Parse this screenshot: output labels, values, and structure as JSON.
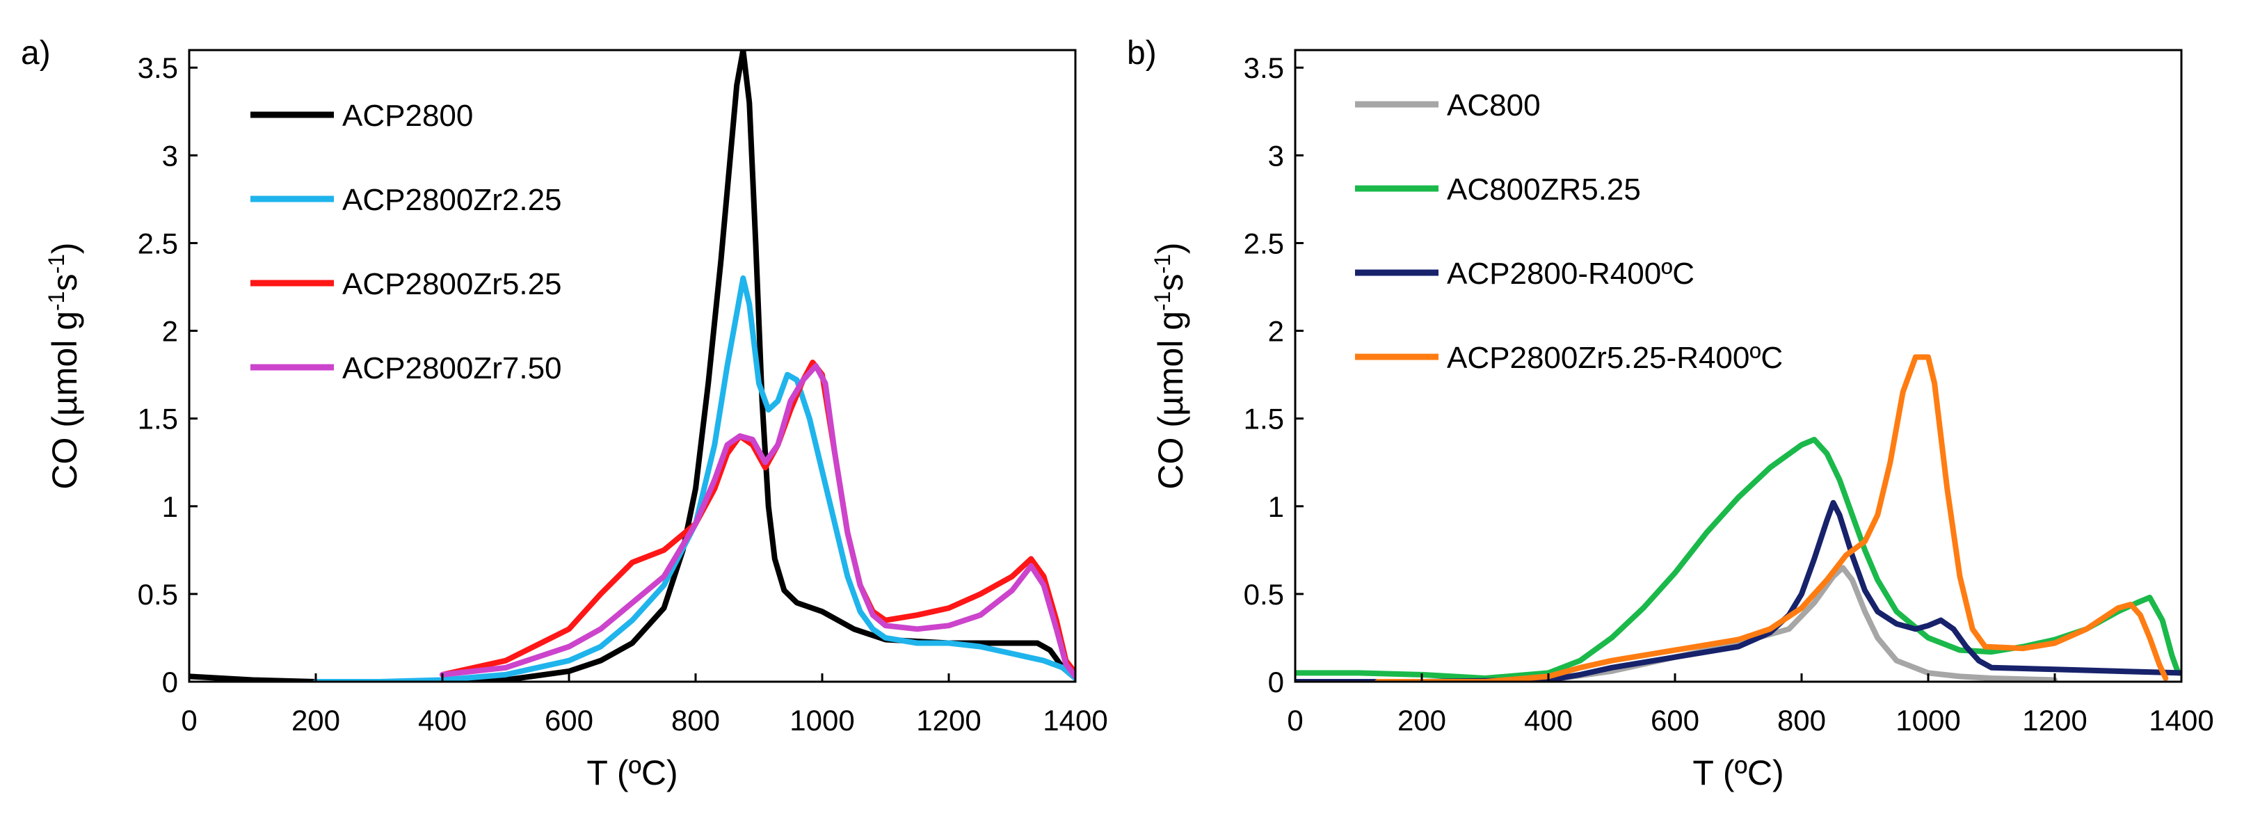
{
  "chart_data": [
    {
      "panel_label": "a)",
      "type": "line",
      "xlabel": "T (ºC)",
      "ylabel": {
        "main": "CO (µmol g",
        "sup1": "-1",
        "mid": "s",
        "sup2": "-1",
        "end": ")"
      },
      "xlim": [
        0,
        1400
      ],
      "ylim": [
        0,
        3.6
      ],
      "xticks": [
        0,
        200,
        400,
        600,
        800,
        1000,
        1200,
        1400
      ],
      "yticks": [
        0,
        0.5,
        1,
        1.5,
        2,
        2.5,
        3,
        3.5
      ],
      "ytick_labels": [
        "0",
        "0.5",
        "1",
        "1.5",
        "2",
        "2.5",
        "3",
        "3.5"
      ],
      "grid": false,
      "legend_position": "top-left",
      "series": [
        {
          "name": "ACP2800",
          "color": "#000000",
          "points": [
            [
              0,
              0.03
            ],
            [
              100,
              0.01
            ],
            [
              200,
              0.0
            ],
            [
              300,
              0.0
            ],
            [
              400,
              0.0
            ],
            [
              500,
              0.01
            ],
            [
              600,
              0.06
            ],
            [
              650,
              0.12
            ],
            [
              700,
              0.22
            ],
            [
              750,
              0.42
            ],
            [
              780,
              0.75
            ],
            [
              800,
              1.1
            ],
            [
              820,
              1.7
            ],
            [
              840,
              2.4
            ],
            [
              855,
              3.0
            ],
            [
              865,
              3.4
            ],
            [
              875,
              3.6
            ],
            [
              885,
              3.3
            ],
            [
              895,
              2.5
            ],
            [
              905,
              1.6
            ],
            [
              915,
              1.0
            ],
            [
              925,
              0.7
            ],
            [
              940,
              0.52
            ],
            [
              960,
              0.45
            ],
            [
              1000,
              0.4
            ],
            [
              1050,
              0.3
            ],
            [
              1100,
              0.24
            ],
            [
              1200,
              0.22
            ],
            [
              1300,
              0.22
            ],
            [
              1340,
              0.22
            ],
            [
              1360,
              0.18
            ],
            [
              1380,
              0.08
            ],
            [
              1400,
              0.02
            ]
          ]
        },
        {
          "name": "ACP2800Zr2.25",
          "color": "#1fb4ec",
          "points": [
            [
              200,
              0.0
            ],
            [
              300,
              0.0
            ],
            [
              400,
              0.01
            ],
            [
              500,
              0.04
            ],
            [
              600,
              0.12
            ],
            [
              650,
              0.2
            ],
            [
              700,
              0.35
            ],
            [
              750,
              0.55
            ],
            [
              800,
              0.9
            ],
            [
              830,
              1.35
            ],
            [
              850,
              1.8
            ],
            [
              865,
              2.1
            ],
            [
              875,
              2.3
            ],
            [
              885,
              2.15
            ],
            [
              900,
              1.7
            ],
            [
              915,
              1.55
            ],
            [
              930,
              1.6
            ],
            [
              945,
              1.75
            ],
            [
              960,
              1.72
            ],
            [
              980,
              1.5
            ],
            [
              1000,
              1.2
            ],
            [
              1020,
              0.9
            ],
            [
              1040,
              0.6
            ],
            [
              1060,
              0.4
            ],
            [
              1080,
              0.3
            ],
            [
              1100,
              0.25
            ],
            [
              1150,
              0.22
            ],
            [
              1200,
              0.22
            ],
            [
              1250,
              0.2
            ],
            [
              1300,
              0.16
            ],
            [
              1350,
              0.12
            ],
            [
              1380,
              0.08
            ],
            [
              1400,
              0.02
            ]
          ]
        },
        {
          "name": "ACP2800Zr5.25",
          "color": "#ff1616",
          "points": [
            [
              400,
              0.04
            ],
            [
              500,
              0.12
            ],
            [
              600,
              0.3
            ],
            [
              650,
              0.5
            ],
            [
              700,
              0.68
            ],
            [
              750,
              0.75
            ],
            [
              800,
              0.9
            ],
            [
              830,
              1.1
            ],
            [
              850,
              1.3
            ],
            [
              870,
              1.4
            ],
            [
              890,
              1.35
            ],
            [
              910,
              1.22
            ],
            [
              930,
              1.35
            ],
            [
              950,
              1.55
            ],
            [
              970,
              1.72
            ],
            [
              985,
              1.82
            ],
            [
              1000,
              1.75
            ],
            [
              1020,
              1.3
            ],
            [
              1040,
              0.85
            ],
            [
              1060,
              0.55
            ],
            [
              1080,
              0.4
            ],
            [
              1100,
              0.35
            ],
            [
              1150,
              0.38
            ],
            [
              1200,
              0.42
            ],
            [
              1250,
              0.5
            ],
            [
              1300,
              0.6
            ],
            [
              1330,
              0.7
            ],
            [
              1350,
              0.6
            ],
            [
              1370,
              0.35
            ],
            [
              1385,
              0.12
            ],
            [
              1400,
              0.05
            ]
          ]
        },
        {
          "name": "ACP2800Zr7.50",
          "color": "#cc44cc",
          "points": [
            [
              400,
              0.04
            ],
            [
              500,
              0.08
            ],
            [
              600,
              0.2
            ],
            [
              650,
              0.3
            ],
            [
              700,
              0.45
            ],
            [
              750,
              0.6
            ],
            [
              800,
              0.9
            ],
            [
              830,
              1.15
            ],
            [
              850,
              1.35
            ],
            [
              870,
              1.4
            ],
            [
              890,
              1.38
            ],
            [
              910,
              1.25
            ],
            [
              930,
              1.35
            ],
            [
              950,
              1.6
            ],
            [
              970,
              1.72
            ],
            [
              990,
              1.8
            ],
            [
              1005,
              1.7
            ],
            [
              1020,
              1.3
            ],
            [
              1040,
              0.85
            ],
            [
              1060,
              0.55
            ],
            [
              1080,
              0.38
            ],
            [
              1100,
              0.32
            ],
            [
              1150,
              0.3
            ],
            [
              1200,
              0.32
            ],
            [
              1250,
              0.38
            ],
            [
              1300,
              0.52
            ],
            [
              1330,
              0.66
            ],
            [
              1350,
              0.55
            ],
            [
              1370,
              0.3
            ],
            [
              1385,
              0.1
            ],
            [
              1400,
              0.03
            ]
          ]
        }
      ]
    },
    {
      "panel_label": "b)",
      "type": "line",
      "xlabel": "T (ºC)",
      "ylabel": {
        "main": "CO (µmol g",
        "sup1": "-1",
        "mid": "s",
        "sup2": "-1",
        "end": ")"
      },
      "xlim": [
        0,
        1400
      ],
      "ylim": [
        0,
        3.6
      ],
      "xticks": [
        0,
        200,
        400,
        600,
        800,
        1000,
        1200,
        1400
      ],
      "yticks": [
        0,
        0.5,
        1,
        1.5,
        2,
        2.5,
        3,
        3.5
      ],
      "ytick_labels": [
        "0",
        "0.5",
        "1",
        "1.5",
        "2",
        "2.5",
        "3",
        "3.5"
      ],
      "grid": false,
      "legend_position": "top-left",
      "series": [
        {
          "name": "AC800",
          "color": "#a6a6a6",
          "points": [
            [
              400,
              0.01
            ],
            [
              500,
              0.06
            ],
            [
              600,
              0.14
            ],
            [
              700,
              0.22
            ],
            [
              780,
              0.3
            ],
            [
              820,
              0.45
            ],
            [
              850,
              0.6
            ],
            [
              865,
              0.65
            ],
            [
              880,
              0.58
            ],
            [
              900,
              0.4
            ],
            [
              920,
              0.25
            ],
            [
              950,
              0.12
            ],
            [
              1000,
              0.05
            ],
            [
              1050,
              0.03
            ],
            [
              1100,
              0.02
            ],
            [
              1200,
              0.01
            ]
          ]
        },
        {
          "name": "AC800ZR5.25",
          "color": "#1ab94a",
          "points": [
            [
              0,
              0.05
            ],
            [
              100,
              0.05
            ],
            [
              200,
              0.04
            ],
            [
              300,
              0.02
            ],
            [
              400,
              0.05
            ],
            [
              450,
              0.12
            ],
            [
              500,
              0.25
            ],
            [
              550,
              0.42
            ],
            [
              600,
              0.62
            ],
            [
              650,
              0.85
            ],
            [
              700,
              1.05
            ],
            [
              750,
              1.22
            ],
            [
              800,
              1.35
            ],
            [
              820,
              1.38
            ],
            [
              840,
              1.3
            ],
            [
              860,
              1.15
            ],
            [
              880,
              0.95
            ],
            [
              900,
              0.75
            ],
            [
              920,
              0.58
            ],
            [
              950,
              0.4
            ],
            [
              1000,
              0.25
            ],
            [
              1050,
              0.18
            ],
            [
              1100,
              0.17
            ],
            [
              1150,
              0.2
            ],
            [
              1200,
              0.24
            ],
            [
              1250,
              0.3
            ],
            [
              1300,
              0.4
            ],
            [
              1330,
              0.45
            ],
            [
              1350,
              0.48
            ],
            [
              1370,
              0.35
            ],
            [
              1385,
              0.15
            ],
            [
              1395,
              0.05
            ]
          ]
        },
        {
          "name": "ACP2800-R400ºC",
          "color": "#17226b",
          "points": [
            [
              0,
              0.0
            ],
            [
              200,
              0.0
            ],
            [
              400,
              0.01
            ],
            [
              450,
              0.04
            ],
            [
              500,
              0.08
            ],
            [
              600,
              0.14
            ],
            [
              700,
              0.2
            ],
            [
              750,
              0.28
            ],
            [
              780,
              0.38
            ],
            [
              800,
              0.5
            ],
            [
              820,
              0.7
            ],
            [
              840,
              0.92
            ],
            [
              850,
              1.02
            ],
            [
              860,
              0.95
            ],
            [
              880,
              0.72
            ],
            [
              900,
              0.52
            ],
            [
              920,
              0.4
            ],
            [
              950,
              0.33
            ],
            [
              980,
              0.3
            ],
            [
              1000,
              0.32
            ],
            [
              1020,
              0.35
            ],
            [
              1040,
              0.3
            ],
            [
              1060,
              0.2
            ],
            [
              1080,
              0.12
            ],
            [
              1100,
              0.08
            ],
            [
              1200,
              0.07
            ],
            [
              1300,
              0.06
            ],
            [
              1400,
              0.05
            ]
          ]
        },
        {
          "name": "ACP2800Zr5.25-R400ºC",
          "color": "#ff7c12",
          "points": [
            [
              130,
              0.0
            ],
            [
              300,
              0.0
            ],
            [
              400,
              0.03
            ],
            [
              450,
              0.08
            ],
            [
              500,
              0.12
            ],
            [
              600,
              0.18
            ],
            [
              700,
              0.24
            ],
            [
              750,
              0.3
            ],
            [
              800,
              0.42
            ],
            [
              840,
              0.58
            ],
            [
              870,
              0.72
            ],
            [
              900,
              0.8
            ],
            [
              920,
              0.95
            ],
            [
              940,
              1.25
            ],
            [
              960,
              1.65
            ],
            [
              980,
              1.85
            ],
            [
              1000,
              1.85
            ],
            [
              1010,
              1.7
            ],
            [
              1030,
              1.1
            ],
            [
              1050,
              0.6
            ],
            [
              1070,
              0.3
            ],
            [
              1090,
              0.2
            ],
            [
              1150,
              0.19
            ],
            [
              1200,
              0.22
            ],
            [
              1250,
              0.3
            ],
            [
              1300,
              0.42
            ],
            [
              1320,
              0.44
            ],
            [
              1335,
              0.38
            ],
            [
              1350,
              0.25
            ],
            [
              1365,
              0.1
            ],
            [
              1375,
              0.02
            ]
          ]
        }
      ]
    }
  ]
}
